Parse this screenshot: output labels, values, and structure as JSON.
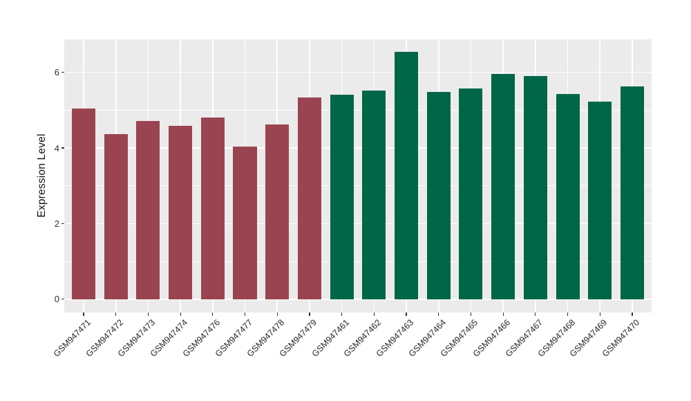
{
  "chart_data": {
    "type": "bar",
    "title": "",
    "xlabel": "",
    "ylabel": "Expression Level",
    "yticks": [
      0,
      2,
      4,
      6
    ],
    "minor_yticks": [
      1,
      3,
      5
    ],
    "ylim": [
      -0.35,
      6.87
    ],
    "grid": true,
    "legend_position": "none",
    "categories": [
      "GSM947471",
      "GSM947472",
      "GSM947473",
      "GSM947474",
      "GSM947476",
      "GSM947477",
      "GSM947478",
      "GSM947479",
      "GSM947461",
      "GSM947462",
      "GSM947463",
      "GSM947464",
      "GSM947465",
      "GSM947466",
      "GSM947467",
      "GSM947468",
      "GSM947469",
      "GSM947470"
    ],
    "values": [
      5.05,
      4.36,
      4.72,
      4.59,
      4.8,
      4.04,
      4.62,
      5.34,
      5.41,
      5.52,
      6.54,
      5.48,
      5.58,
      5.95,
      5.9,
      5.42,
      5.23,
      5.63
    ],
    "groups": [
      "group1",
      "group1",
      "group1",
      "group1",
      "group1",
      "group1",
      "group1",
      "group1",
      "group2",
      "group2",
      "group2",
      "group2",
      "group2",
      "group2",
      "group2",
      "group2",
      "group2",
      "group2"
    ],
    "group_colors": {
      "group1": "#9A4452",
      "group2": "#006648"
    },
    "style": {
      "panel_bg": "#EBEBEB",
      "grid_color": "#FFFFFF",
      "tick_color": "#333333",
      "text_color": "#262626"
    }
  }
}
